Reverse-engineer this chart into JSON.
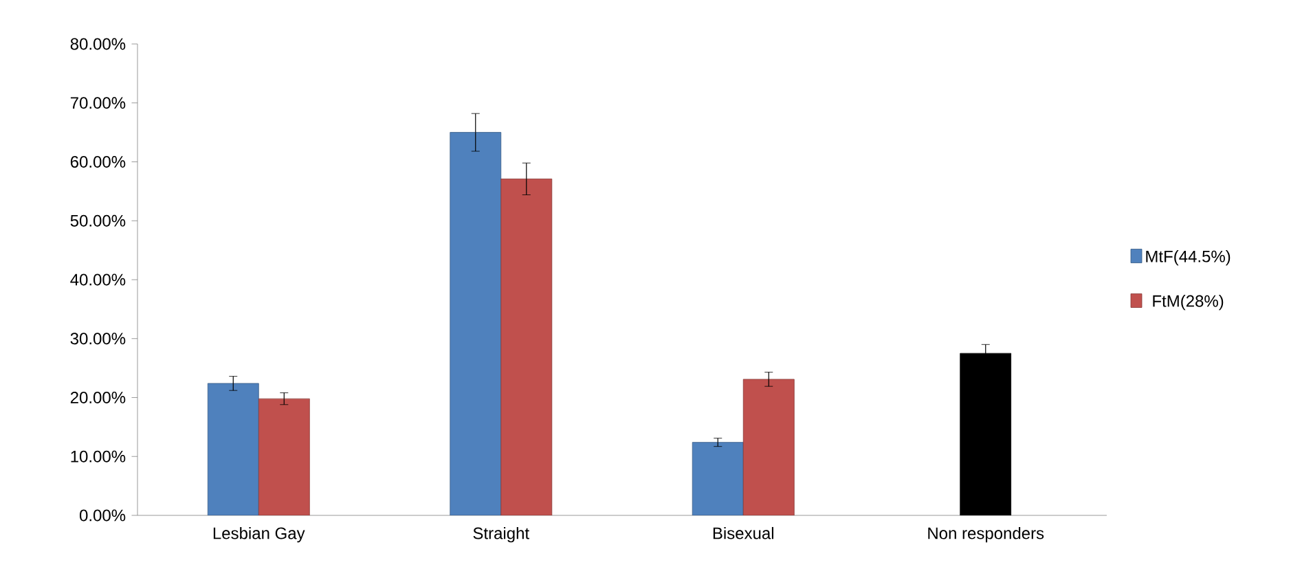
{
  "chart_data": {
    "type": "bar",
    "categories": [
      "Lesbian Gay",
      "Straight",
      "Bisexual",
      "Non responders"
    ],
    "series": [
      {
        "name": "MtF(44.5%)",
        "color": "#4f81bd",
        "values": [
          22.4,
          65.0,
          12.4,
          null
        ],
        "errors": [
          1.2,
          3.2,
          0.7,
          null
        ]
      },
      {
        "name": "FtM(28%)",
        "color": "#c0504d",
        "values": [
          19.8,
          57.1,
          23.1,
          null
        ],
        "errors": [
          1.0,
          2.7,
          1.2,
          null
        ]
      },
      {
        "color": "#000000",
        "values": [
          null,
          null,
          null,
          27.5
        ],
        "errors": [
          null,
          null,
          null,
          1.5
        ]
      }
    ],
    "ylim": [
      0,
      80
    ],
    "yticks": [
      {
        "value": 0,
        "label": "0.00%"
      },
      {
        "value": 10,
        "label": "10.00%"
      },
      {
        "value": 20,
        "label": "20.00%"
      },
      {
        "value": 30,
        "label": "30.00%"
      },
      {
        "value": 40,
        "label": "40.00%"
      },
      {
        "value": 50,
        "label": "50.00%"
      },
      {
        "value": 60,
        "label": "60.00%"
      },
      {
        "value": 70,
        "label": "70.00%"
      },
      {
        "value": 80,
        "label": "80.00%"
      }
    ],
    "grid": false,
    "legend": "right"
  }
}
